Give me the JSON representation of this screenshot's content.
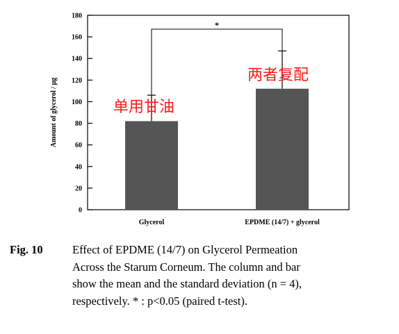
{
  "chart_data": {
    "type": "bar",
    "categories": [
      "Glycerol",
      "EPDME (14/7) + glycerol"
    ],
    "values": [
      82,
      112
    ],
    "error": [
      24,
      35
    ],
    "ylabel": "Amount of glycerol / μg",
    "xlabel": "",
    "ylim": [
      0,
      180
    ],
    "yticks": [
      0,
      20,
      40,
      60,
      80,
      100,
      120,
      140,
      160,
      180
    ],
    "grid": false,
    "bar_color": "#555555",
    "annotations": [
      "单用甘油",
      "两者复配"
    ],
    "annotation_color": "#ff1a1a",
    "significance": "*"
  },
  "caption": {
    "label": "Fig. 10",
    "lines": [
      "Effect of EPDME (14/7) on Glycerol Permeation",
      "Across the Starum Corneum.  The column and bar",
      "show the mean and the standard deviation (n = 4),",
      "respectively.  * : p<0.05 (paired t-test)."
    ]
  }
}
